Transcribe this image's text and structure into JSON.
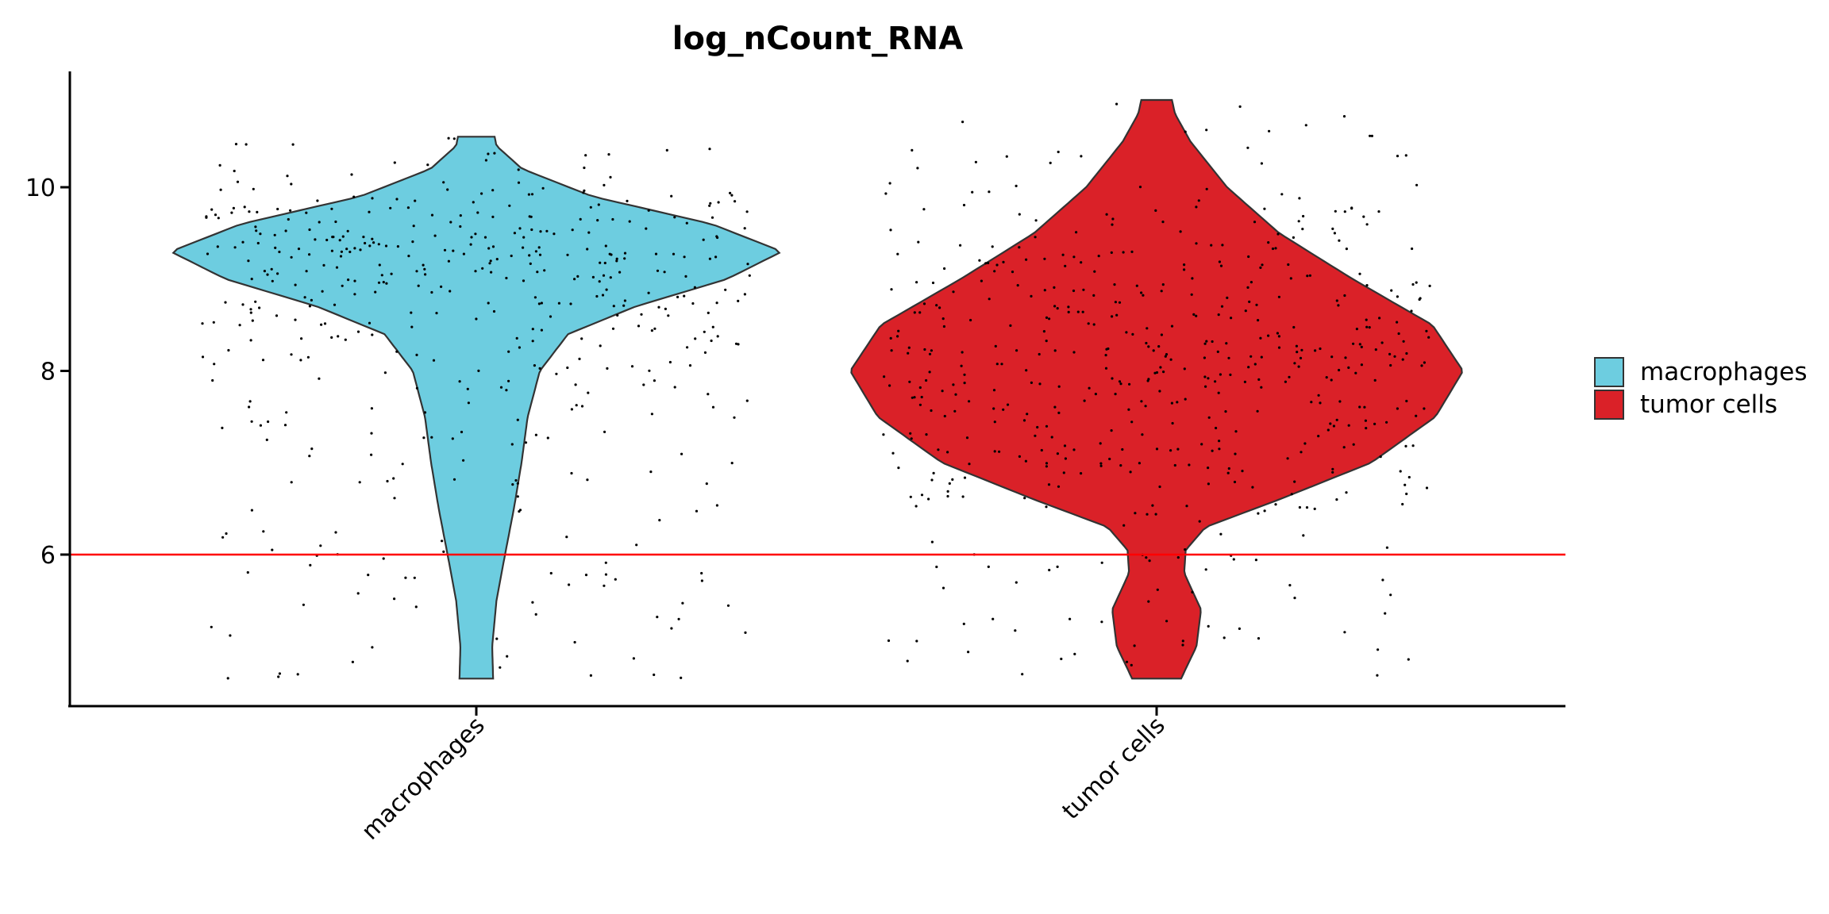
{
  "chart_data": {
    "type": "violin",
    "title": "log_nCount_RNA",
    "xlabel": "",
    "ylabel": "",
    "categories": [
      "macrophages",
      "tumor cells"
    ],
    "ylim": [
      4.4,
      11.2
    ],
    "yticks": [
      6,
      8,
      10
    ],
    "grid": false,
    "legend_placement": "right",
    "threshold_line": {
      "y": 6,
      "color": "#ff0000"
    },
    "series": [
      {
        "name": "macrophages",
        "color": "#6dcde0",
        "min": 4.65,
        "max": 10.55,
        "density_profile": [
          [
            4.65,
            0.055
          ],
          [
            5.0,
            0.052
          ],
          [
            5.5,
            0.066
          ],
          [
            6.0,
            0.094
          ],
          [
            6.5,
            0.123
          ],
          [
            7.0,
            0.148
          ],
          [
            7.5,
            0.168
          ],
          [
            8.0,
            0.208
          ],
          [
            8.4,
            0.3
          ],
          [
            8.7,
            0.52
          ],
          [
            9.0,
            0.82
          ],
          [
            9.3,
            1.0
          ],
          [
            9.6,
            0.77
          ],
          [
            9.9,
            0.38
          ],
          [
            10.2,
            0.15
          ],
          [
            10.45,
            0.066
          ],
          [
            10.55,
            0.06
          ]
        ]
      },
      {
        "name": "tumor cells",
        "color": "#da2128",
        "min": 4.65,
        "max": 10.95,
        "density_profile": [
          [
            4.65,
            0.08
          ],
          [
            5.0,
            0.13
          ],
          [
            5.4,
            0.145
          ],
          [
            5.8,
            0.09
          ],
          [
            6.05,
            0.095
          ],
          [
            6.3,
            0.16
          ],
          [
            6.6,
            0.4
          ],
          [
            7.0,
            0.7
          ],
          [
            7.5,
            0.91
          ],
          [
            8.0,
            1.0
          ],
          [
            8.5,
            0.9
          ],
          [
            9.0,
            0.64
          ],
          [
            9.5,
            0.4
          ],
          [
            10.0,
            0.23
          ],
          [
            10.5,
            0.11
          ],
          [
            10.8,
            0.06
          ],
          [
            10.95,
            0.05
          ]
        ]
      }
    ]
  }
}
